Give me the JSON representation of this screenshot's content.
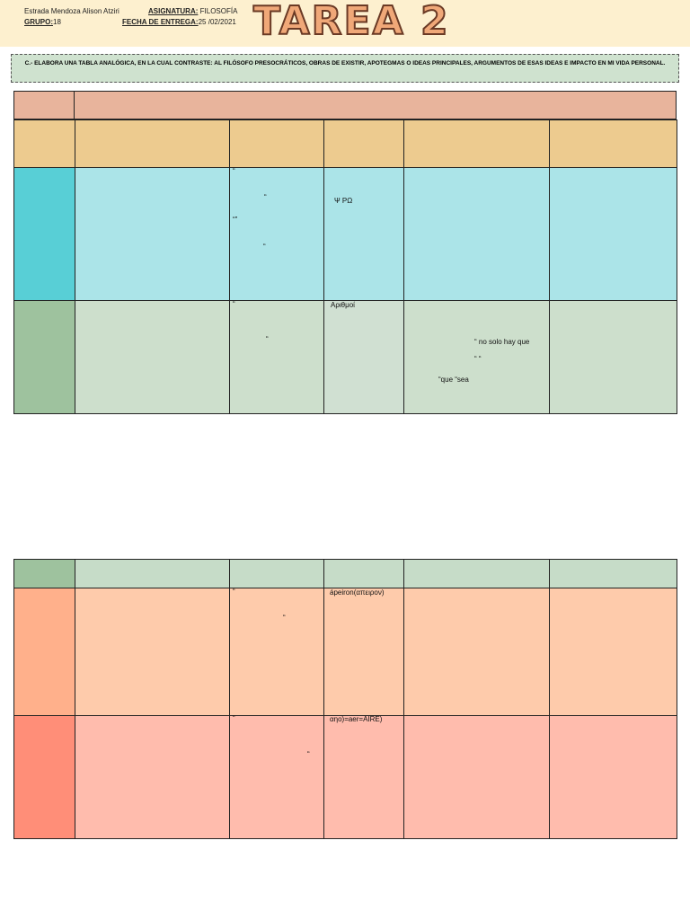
{
  "header": {
    "student": "Estrada Mendoza Alison Atziri",
    "group_label": "GRUPO:",
    "group": "18",
    "subject_label": "ASIGNATURA:",
    "subject": "FILOSOFÍA",
    "date_label": "FECHA DE ENTREGA:",
    "date": "25 /02/2021",
    "title": "TAREA 2"
  },
  "instruction": "C.- ELABORA UNA TABLA ANALÓGICA, EN LA CUAL CONTRASTE: AL FILÓSOFO PRESOCRÁTICOS, OBRAS DE EXISTIR, APOTEGMAS O IDEAS PRINCIPALES, ARGUMENTOS DE ESAS IDEAS E IMPACTO EN MI VIDA PERSONAL.",
  "table1": {
    "row1": {
      "col2": [
        "“",
        "“",
        "“”",
        "“"
      ],
      "col3": "Ψ  PΩ"
    },
    "row2": {
      "col2": [
        "“",
        "“"
      ],
      "col3": "Αριθμοί",
      "col4": [
        "“ no solo hay que",
        "“     “",
        "“que “sea"
      ]
    }
  },
  "table2": {
    "row1": {
      "col2": [
        "“",
        "“"
      ],
      "col3": "ápeiron(απειρον)"
    },
    "row2": {
      "col2": [
        "“",
        "“"
      ],
      "col3": "αηο)=aer=AIRE)"
    }
  }
}
